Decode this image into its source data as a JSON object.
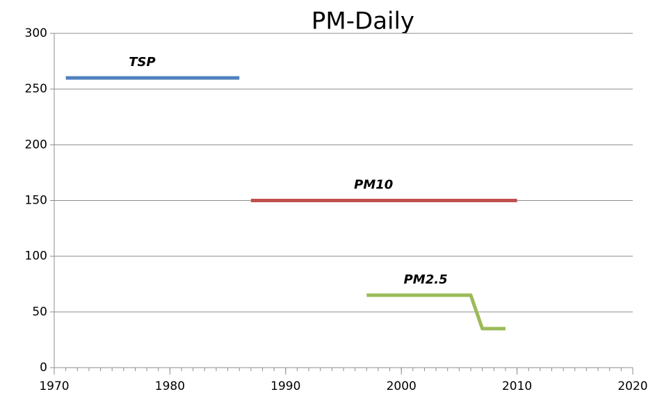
{
  "chart_data": {
    "type": "line",
    "title": "PM-Daily",
    "xlim": [
      1970,
      2020
    ],
    "xticks": [
      1970,
      1980,
      1990,
      2000,
      2010,
      2020
    ],
    "xminor_step": 1,
    "ylim": [
      0,
      300
    ],
    "yticks": [
      0,
      50,
      100,
      150,
      200,
      250,
      300
    ],
    "grid": true,
    "series": [
      {
        "name": "TSP",
        "color": "#4f81bd",
        "x": [
          1971,
          1986
        ],
        "values": [
          260,
          260
        ]
      },
      {
        "name": "PM10",
        "color": "#c0504d",
        "x": [
          1987,
          2010
        ],
        "values": [
          150,
          150
        ]
      },
      {
        "name": "PM2.5",
        "color": "#9bbb59",
        "x": [
          1997,
          2006,
          2007,
          2009
        ],
        "values": [
          65,
          65,
          35,
          35
        ]
      }
    ]
  }
}
